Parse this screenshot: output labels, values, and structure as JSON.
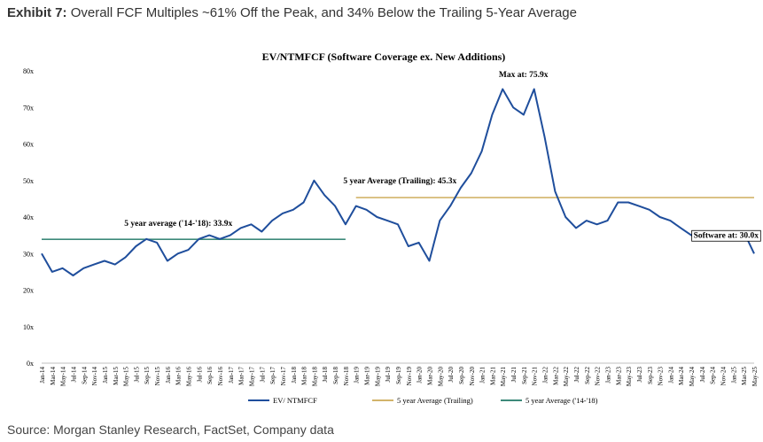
{
  "header": {
    "exhibit_label": "Exhibit 7:",
    "exhibit_title": "Overall FCF Multiples ~61% Off the Peak, and 34% Below the Trailing 5-Year Average"
  },
  "footer": {
    "source": "Source: Morgan Stanley Research, FactSet, Company data"
  },
  "chart_data": {
    "type": "line",
    "title": "EV/NTMFCF (Software Coverage ex. New Additions)",
    "xlabel": "",
    "ylabel": "",
    "ylim": [
      0,
      80
    ],
    "yticks": [
      "0x",
      "10x",
      "20x",
      "30x",
      "40x",
      "50x",
      "60x",
      "70x",
      "80x"
    ],
    "grid": false,
    "legend_position": "bottom",
    "x_ticks": [
      "Jan-14",
      "Mar-14",
      "May-14",
      "Jul-14",
      "Sep-14",
      "Nov-14",
      "Jan-15",
      "Mar-15",
      "May-15",
      "Jul-15",
      "Sep-15",
      "Nov-15",
      "Jan-16",
      "Mar-16",
      "May-16",
      "Jul-16",
      "Sep-16",
      "Nov-16",
      "Jan-17",
      "Mar-17",
      "May-17",
      "Jul-17",
      "Sep-17",
      "Nov-17",
      "Jan-18",
      "Mar-18",
      "May-18",
      "Jul-18",
      "Sep-18",
      "Nov-18",
      "Jan-19",
      "Mar-19",
      "May-19",
      "Jul-19",
      "Sep-19",
      "Nov-19",
      "Jan-20",
      "Mar-20",
      "May-20",
      "Jul-20",
      "Sep-20",
      "Nov-20",
      "Jan-21",
      "Mar-21",
      "May-21",
      "Jul-21",
      "Sep-21",
      "Nov-21",
      "Jan-22",
      "Mar-22",
      "May-22",
      "Jul-22",
      "Sep-22",
      "Nov-22",
      "Jan-23",
      "Mar-23",
      "May-23",
      "Jul-23",
      "Sep-23",
      "Nov-23",
      "Jan-24",
      "Mar-24",
      "May-24",
      "Jul-24",
      "Sep-24",
      "Nov-24",
      "Jan-25",
      "Mar-25",
      "May-25"
    ],
    "series": [
      {
        "name": "EV/ NTMFCF",
        "color": "#1f4e9c",
        "values": [
          30,
          25,
          26,
          24,
          26,
          27,
          28,
          27,
          29,
          32,
          34,
          33,
          28,
          30,
          31,
          34,
          35,
          34,
          35,
          37,
          38,
          36,
          39,
          41,
          42,
          44,
          50,
          46,
          43,
          38,
          43,
          42,
          40,
          39,
          38,
          32,
          33,
          28,
          39,
          43,
          48,
          52,
          58,
          68,
          75,
          70,
          68,
          75,
          62,
          47,
          40,
          37,
          39,
          38,
          39,
          44,
          44,
          43,
          42,
          40,
          39,
          37,
          35,
          34,
          36,
          34,
          36,
          36,
          30
        ]
      },
      {
        "name": "5 year Average (Trailing)",
        "color": "#d2b46a",
        "values": [
          null,
          null,
          null,
          null,
          null,
          null,
          null,
          null,
          null,
          null,
          null,
          null,
          null,
          null,
          null,
          null,
          null,
          null,
          null,
          null,
          null,
          null,
          null,
          null,
          null,
          null,
          null,
          null,
          null,
          null,
          45.3,
          45.3,
          45.3,
          45.3,
          45.3,
          45.3,
          45.3,
          45.3,
          45.3,
          45.3,
          45.3,
          45.3,
          45.3,
          45.3,
          45.3,
          45.3,
          45.3,
          45.3,
          45.3,
          45.3,
          45.3,
          45.3,
          45.3,
          45.3,
          45.3,
          45.3,
          45.3,
          45.3,
          45.3,
          45.3,
          45.3,
          45.3,
          45.3,
          45.3,
          45.3,
          45.3,
          45.3,
          45.3,
          45.3
        ]
      },
      {
        "name": "5 year Average ('14-'18)",
        "color": "#3d8a7a",
        "values": [
          33.9,
          33.9,
          33.9,
          33.9,
          33.9,
          33.9,
          33.9,
          33.9,
          33.9,
          33.9,
          33.9,
          33.9,
          33.9,
          33.9,
          33.9,
          33.9,
          33.9,
          33.9,
          33.9,
          33.9,
          33.9,
          33.9,
          33.9,
          33.9,
          33.9,
          33.9,
          33.9,
          33.9,
          33.9,
          33.9,
          null,
          null,
          null,
          null,
          null,
          null,
          null,
          null,
          null,
          null,
          null,
          null,
          null,
          null,
          null,
          null,
          null,
          null,
          null,
          null,
          null,
          null,
          null,
          null,
          null,
          null,
          null,
          null,
          null,
          null,
          null,
          null,
          null,
          null,
          null,
          null,
          null,
          null,
          null
        ]
      }
    ],
    "annotations": [
      {
        "text": "5 year average ('14-'18): 33.9x",
        "index": 10,
        "value": 33.9
      },
      {
        "text": "5 year Average (Trailing): 45.3x",
        "index": 32,
        "value": 45.3
      },
      {
        "text": "Max at: 75.9x",
        "index": 47,
        "value": 75.9
      },
      {
        "text": "Software at: 30.0x",
        "index": 66,
        "value": 30.0
      }
    ]
  }
}
